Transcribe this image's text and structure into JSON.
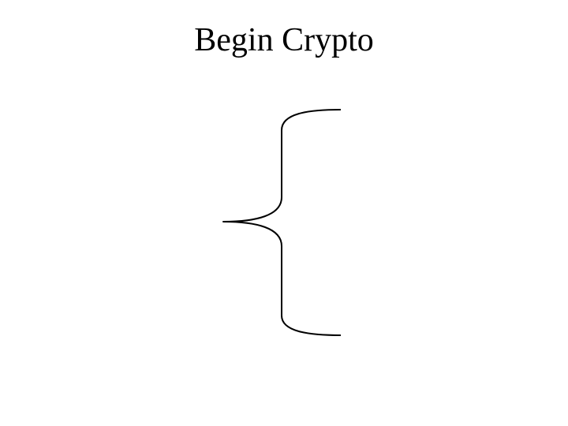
{
  "slide": {
    "title": "Begin Crypto"
  },
  "diagram": {
    "shape": "curly-brace-left",
    "stroke_color": "#000000",
    "background_color": "#ffffff"
  }
}
